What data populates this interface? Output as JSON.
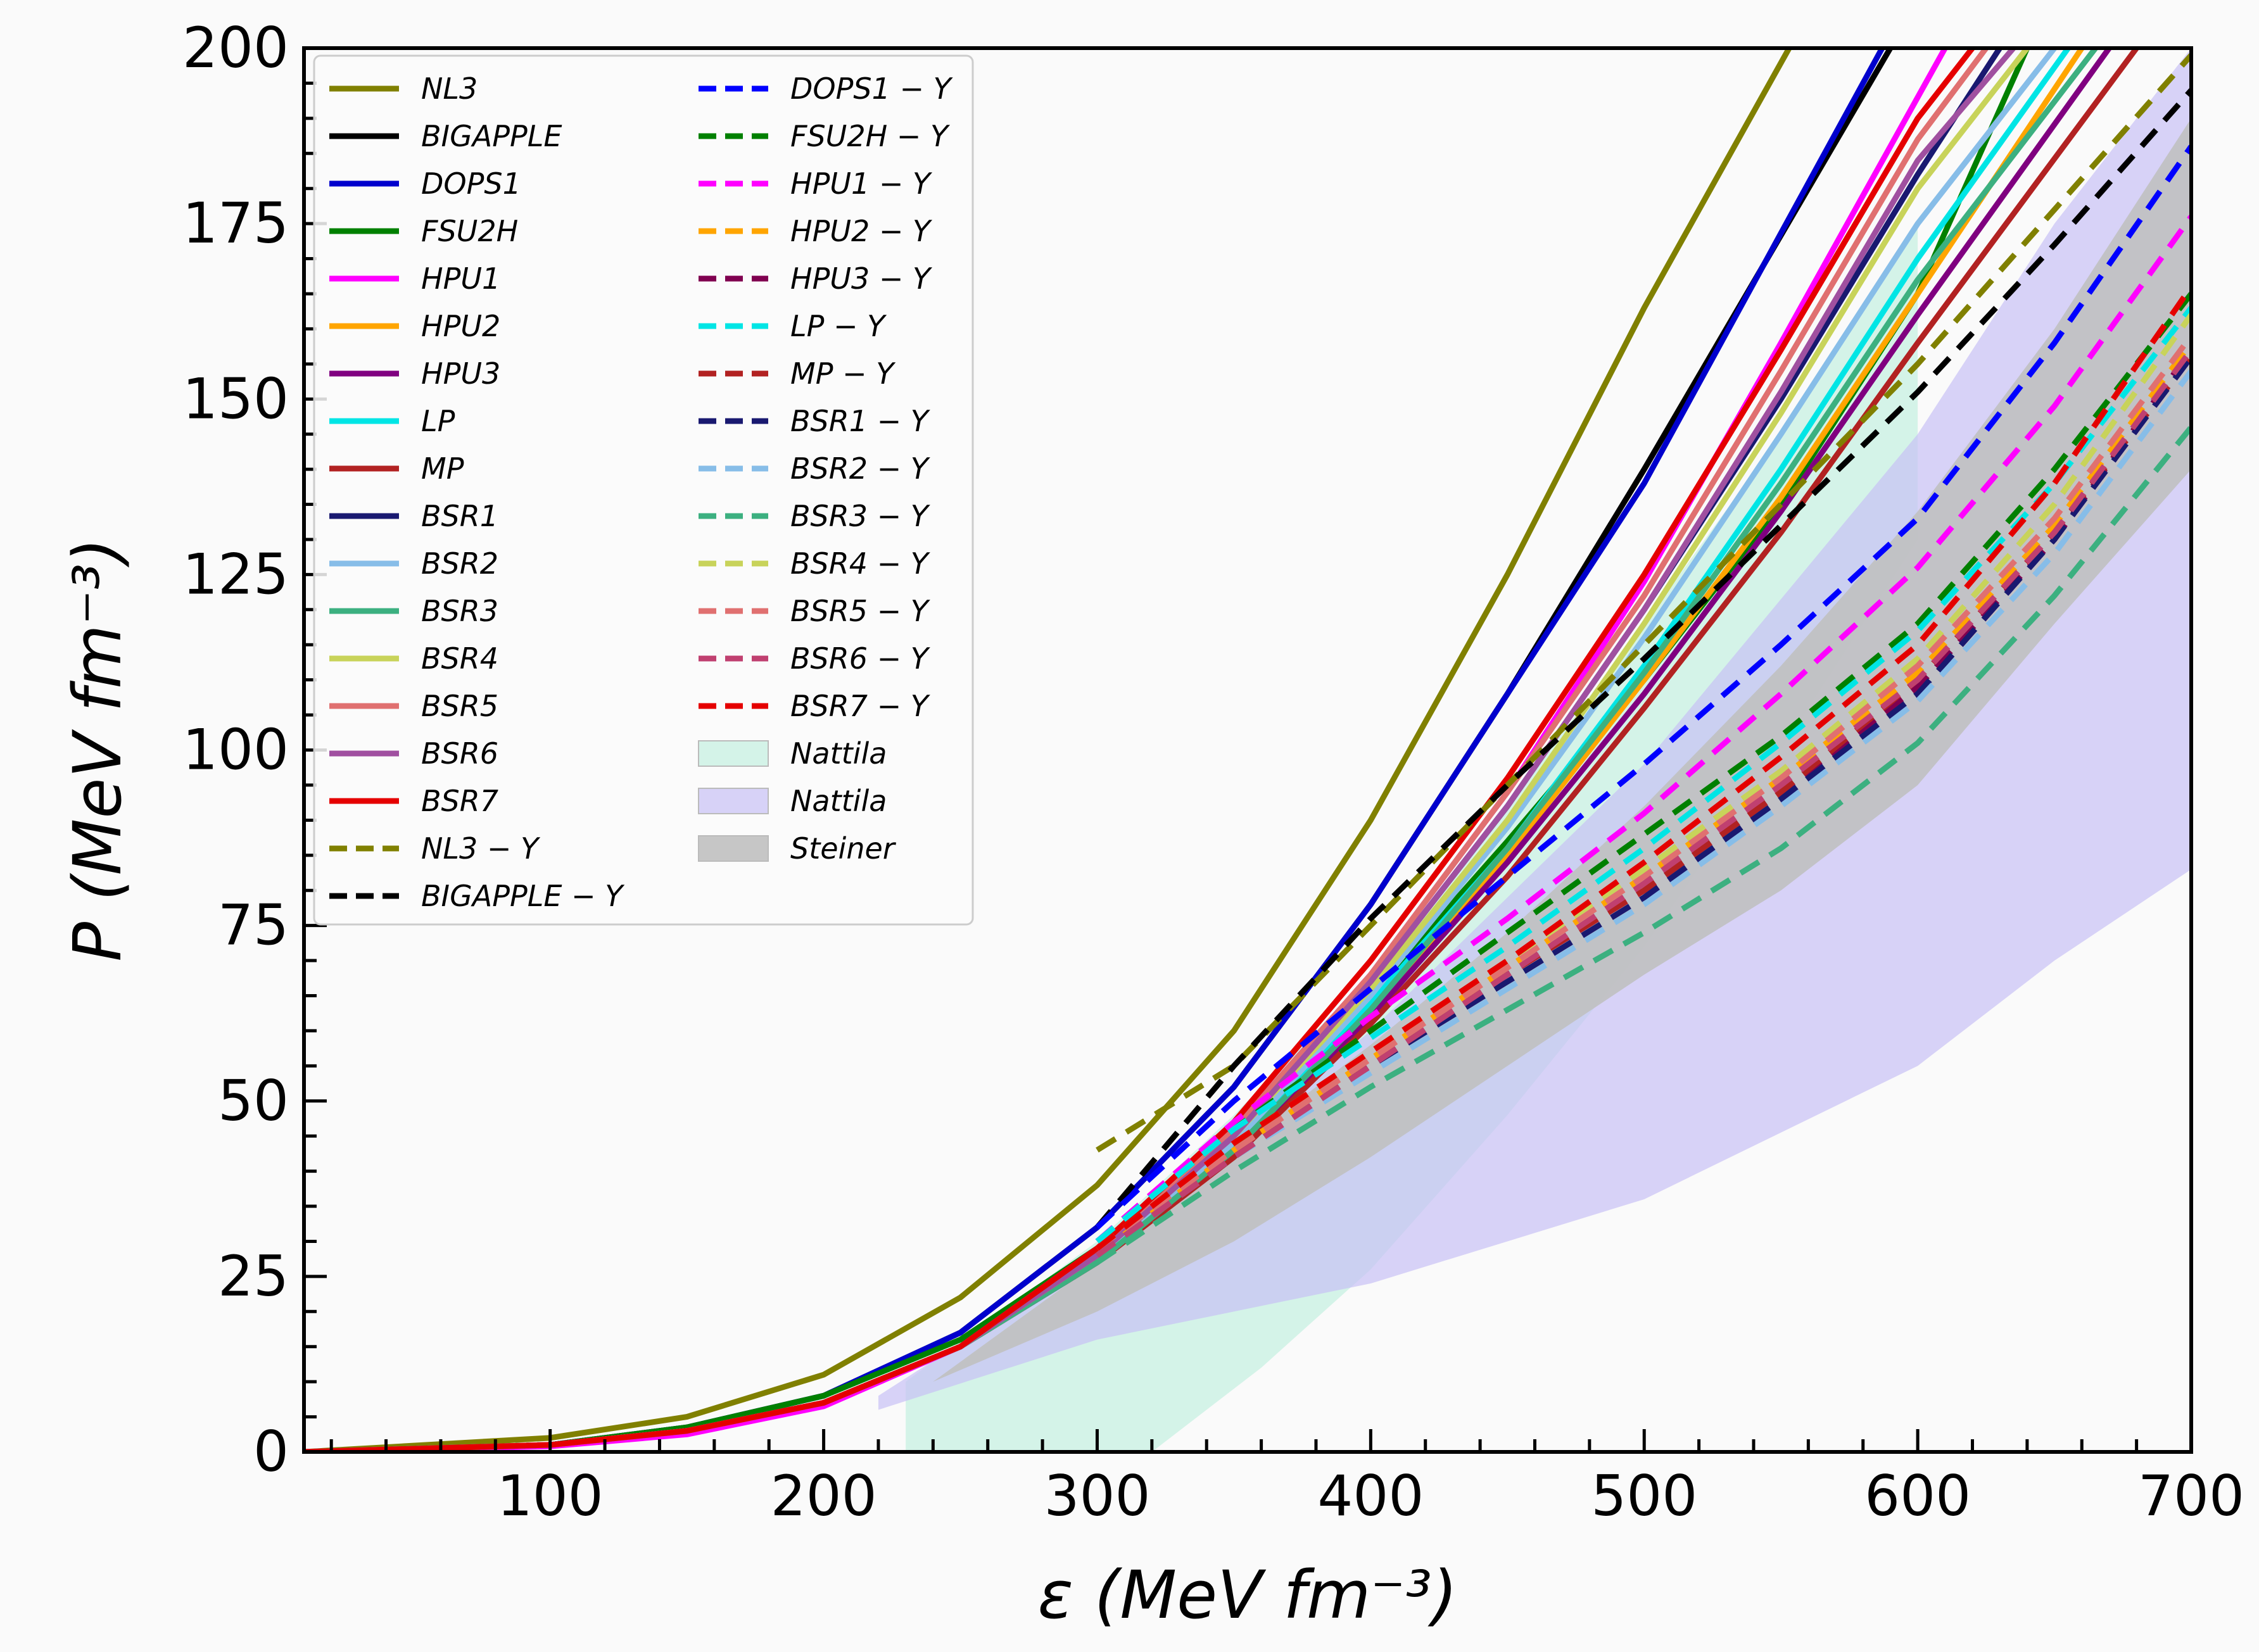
{
  "chart_data": {
    "type": "line",
    "xlabel": "ε (MeV fm⁻³)",
    "ylabel": "P (MeV fm⁻³)",
    "xlim": [
      10,
      700
    ],
    "ylim": [
      0,
      200
    ],
    "x_ticks": [
      100,
      200,
      300,
      400,
      500,
      600,
      700
    ],
    "y_ticks": [
      0,
      25,
      50,
      75,
      100,
      125,
      150,
      175,
      200
    ],
    "legend_position": "top-left",
    "grid": false,
    "series": [
      {
        "name": "NL3",
        "style": "solid",
        "color": "#808000",
        "x": [
          10,
          100,
          150,
          200,
          250,
          300,
          350,
          400,
          450,
          500,
          553
        ],
        "y": [
          0,
          2,
          5,
          11,
          22,
          38,
          60,
          90,
          125,
          163,
          200
        ]
      },
      {
        "name": "BIGAPPLE",
        "style": "solid",
        "color": "#000000",
        "x": [
          10,
          100,
          150,
          200,
          250,
          300,
          350,
          400,
          450,
          500,
          590
        ],
        "y": [
          0,
          1,
          3.5,
          8,
          17,
          32,
          52,
          78,
          108,
          140,
          200
        ]
      },
      {
        "name": "DOPS1",
        "style": "solid",
        "color": "#0000cd",
        "x": [
          10,
          100,
          150,
          200,
          250,
          300,
          350,
          400,
          450,
          500,
          587
        ],
        "y": [
          0,
          1,
          3.5,
          8,
          17,
          32,
          52,
          78,
          108,
          138,
          200
        ]
      },
      {
        "name": "FSU2H",
        "style": "solid",
        "color": "#008000",
        "x": [
          10,
          100,
          150,
          200,
          250,
          300,
          350,
          400,
          450,
          500,
          550,
          600,
          640
        ],
        "y": [
          0,
          1,
          3.5,
          8,
          16,
          29,
          45,
          65,
          87,
          110,
          135,
          165,
          200
        ]
      },
      {
        "name": "HPU1",
        "style": "solid",
        "color": "#ff00ff",
        "x": [
          10,
          100,
          150,
          200,
          250,
          300,
          350,
          400,
          450,
          500,
          550,
          610
        ],
        "y": [
          0,
          0.8,
          2.5,
          6.5,
          15,
          29,
          46,
          68,
          94,
          124,
          158,
          200
        ]
      },
      {
        "name": "HPU2",
        "style": "solid",
        "color": "#ffa500",
        "x": [
          10,
          100,
          150,
          200,
          250,
          300,
          350,
          400,
          450,
          500,
          550,
          600,
          660
        ],
        "y": [
          0,
          1,
          3,
          7,
          15,
          28,
          44,
          63,
          85,
          110,
          136,
          165,
          200
        ]
      },
      {
        "name": "HPU3",
        "style": "solid",
        "color": "#800080",
        "x": [
          10,
          100,
          150,
          200,
          250,
          300,
          350,
          400,
          450,
          500,
          550,
          600,
          670
        ],
        "y": [
          0,
          1,
          3,
          7,
          15,
          27,
          43,
          62,
          84,
          108,
          134,
          162,
          200
        ]
      },
      {
        "name": "LP",
        "style": "solid",
        "color": "#00e5e5",
        "x": [
          10,
          100,
          150,
          200,
          250,
          300,
          350,
          400,
          450,
          500,
          550,
          600,
          655
        ],
        "y": [
          0,
          1,
          3,
          7,
          15,
          28,
          44,
          64,
          86,
          112,
          140,
          170,
          200
        ]
      },
      {
        "name": "MP",
        "style": "solid",
        "color": "#b22222",
        "x": [
          10,
          100,
          150,
          200,
          250,
          300,
          350,
          400,
          450,
          500,
          550,
          600,
          680
        ],
        "y": [
          0,
          1,
          3,
          7,
          15,
          27,
          42,
          61,
          82,
          106,
          131,
          158,
          200
        ]
      },
      {
        "name": "BSR1",
        "style": "solid",
        "color": "#191970",
        "x": [
          10,
          100,
          150,
          200,
          250,
          300,
          350,
          400,
          450,
          500,
          550,
          600,
          630
        ],
        "y": [
          0,
          1,
          3,
          7,
          15,
          28,
          45,
          67,
          92,
          120,
          150,
          182,
          200
        ]
      },
      {
        "name": "BSR2",
        "style": "solid",
        "color": "#87bde8",
        "x": [
          10,
          100,
          150,
          200,
          250,
          300,
          350,
          400,
          450,
          500,
          550,
          600,
          650
        ],
        "y": [
          0,
          1,
          3,
          7,
          15,
          28,
          44,
          65,
          89,
          116,
          145,
          175,
          200
        ]
      },
      {
        "name": "BSR3",
        "style": "solid",
        "color": "#3cb080",
        "x": [
          10,
          100,
          150,
          200,
          250,
          300,
          350,
          400,
          450,
          500,
          550,
          600,
          665
        ],
        "y": [
          0,
          1,
          3,
          7,
          15,
          27,
          43,
          63,
          86,
          111,
          138,
          167,
          200
        ]
      },
      {
        "name": "BSR4",
        "style": "solid",
        "color": "#c8d35a",
        "x": [
          10,
          100,
          150,
          200,
          250,
          300,
          350,
          400,
          450,
          500,
          550,
          600,
          640
        ],
        "y": [
          0,
          1,
          3,
          7,
          15,
          28,
          45,
          66,
          90,
          118,
          148,
          180,
          200
        ]
      },
      {
        "name": "BSR5",
        "style": "solid",
        "color": "#e07070",
        "x": [
          10,
          100,
          150,
          200,
          250,
          300,
          350,
          400,
          450,
          500,
          550,
          600,
          625
        ],
        "y": [
          0,
          1,
          3,
          7,
          15,
          28,
          46,
          68,
          94,
          122,
          154,
          187,
          200
        ]
      },
      {
        "name": "BSR6",
        "style": "solid",
        "color": "#a050a0",
        "x": [
          10,
          100,
          150,
          200,
          250,
          300,
          350,
          400,
          450,
          500,
          550,
          600,
          635
        ],
        "y": [
          0,
          1,
          3,
          7,
          15,
          28,
          45,
          67,
          92,
          120,
          151,
          184,
          200
        ]
      },
      {
        "name": "BSR7",
        "style": "solid",
        "color": "#e50000",
        "x": [
          10,
          100,
          150,
          200,
          250,
          300,
          350,
          400,
          450,
          500,
          550,
          600,
          620
        ],
        "y": [
          0,
          1,
          3,
          7,
          15,
          29,
          47,
          70,
          96,
          125,
          157,
          190,
          200
        ]
      },
      {
        "name": "NL3 − Y",
        "style": "dashed",
        "color": "#808000",
        "x": [
          300,
          350,
          400,
          450,
          500,
          550,
          600,
          650,
          700
        ],
        "y": [
          43,
          55,
          75,
          95,
          115,
          135,
          155,
          177,
          199
        ]
      },
      {
        "name": "BIGAPPLE − Y",
        "style": "dashed",
        "color": "#000000",
        "x": [
          300,
          350,
          400,
          450,
          500,
          550,
          600,
          650,
          700
        ],
        "y": [
          32,
          55,
          76,
          95,
          113,
          132,
          151,
          172,
          194
        ]
      },
      {
        "name": "DOPS1 − Y",
        "style": "dashed",
        "color": "#0000ff",
        "x": [
          300,
          350,
          400,
          450,
          500,
          550,
          600,
          650,
          700
        ],
        "y": [
          32,
          50,
          66,
          82,
          98,
          115,
          133,
          158,
          186
        ]
      },
      {
        "name": "FSU2H − Y",
        "style": "dashed",
        "color": "#008000",
        "x": [
          300,
          350,
          400,
          450,
          500,
          550,
          600,
          650,
          700
        ],
        "y": [
          30,
          46,
          60,
          74,
          88,
          102,
          118,
          140,
          165
        ]
      },
      {
        "name": "HPU1 − Y",
        "style": "dashed",
        "color": "#ff00ff",
        "x": [
          300,
          350,
          400,
          450,
          500,
          550,
          600,
          650,
          700
        ],
        "y": [
          30,
          47,
          62,
          76,
          91,
          108,
          126,
          149,
          176
        ]
      },
      {
        "name": "HPU2 − Y",
        "style": "dashed",
        "color": "#ffa500",
        "x": [
          300,
          350,
          400,
          450,
          500,
          550,
          600,
          650,
          700
        ],
        "y": [
          28,
          43,
          56,
          69,
          82,
          96,
          111,
          132,
          158
        ]
      },
      {
        "name": "HPU3 − Y",
        "style": "dashed",
        "color": "#800050",
        "x": [
          300,
          350,
          400,
          450,
          500,
          550,
          600,
          650,
          700
        ],
        "y": [
          28,
          42,
          55,
          68,
          80,
          94,
          109,
          130,
          157
        ]
      },
      {
        "name": "LP − Y",
        "style": "dashed",
        "color": "#00e5e5",
        "x": [
          300,
          350,
          400,
          450,
          500,
          550,
          600,
          650,
          700
        ],
        "y": [
          30,
          46,
          59,
          72,
          86,
          101,
          117,
          138,
          163
        ]
      },
      {
        "name": "MP − Y",
        "style": "dashed",
        "color": "#b22222",
        "x": [
          300,
          350,
          400,
          450,
          500,
          550,
          600,
          650,
          700
        ],
        "y": [
          28,
          42,
          55,
          68,
          80,
          94,
          110,
          131,
          156
        ]
      },
      {
        "name": "BSR1 − Y",
        "style": "dashed",
        "color": "#191970",
        "x": [
          300,
          350,
          400,
          450,
          500,
          550,
          600,
          650,
          700
        ],
        "y": [
          28,
          42,
          55,
          67,
          79,
          93,
          108,
          130,
          156
        ]
      },
      {
        "name": "BSR2 − Y",
        "style": "dashed",
        "color": "#87bde8",
        "x": [
          300,
          350,
          400,
          450,
          500,
          550,
          600,
          650,
          700
        ],
        "y": [
          28,
          42,
          54,
          66,
          78,
          92,
          107,
          128,
          154
        ]
      },
      {
        "name": "BSR3 − Y",
        "style": "dashed",
        "color": "#3cb080",
        "x": [
          300,
          350,
          400,
          450,
          500,
          550,
          600,
          650,
          700
        ],
        "y": [
          27,
          40,
          52,
          63,
          74,
          86,
          101,
          122,
          146
        ]
      },
      {
        "name": "BSR4 − Y",
        "style": "dashed",
        "color": "#c8d35a",
        "x": [
          300,
          350,
          400,
          450,
          500,
          550,
          600,
          650,
          700
        ],
        "y": [
          29,
          44,
          57,
          70,
          83,
          97,
          113,
          135,
          162
        ]
      },
      {
        "name": "BSR5 − Y",
        "style": "dashed",
        "color": "#e07070",
        "x": [
          300,
          350,
          400,
          450,
          500,
          550,
          600,
          650,
          700
        ],
        "y": [
          29,
          43,
          56,
          69,
          82,
          96,
          112,
          133,
          159
        ]
      },
      {
        "name": "BSR6 − Y",
        "style": "dashed",
        "color": "#c04070",
        "x": [
          300,
          350,
          400,
          450,
          500,
          550,
          600,
          650,
          700
        ],
        "y": [
          28,
          42,
          55,
          68,
          81,
          95,
          110,
          131,
          157
        ]
      },
      {
        "name": "BSR7 − Y",
        "style": "dashed",
        "color": "#e50000",
        "x": [
          300,
          350,
          400,
          450,
          500,
          550,
          600,
          650,
          700
        ],
        "y": [
          29,
          44,
          57,
          70,
          84,
          99,
          115,
          138,
          166
        ]
      }
    ],
    "bands": [
      {
        "name": "Nattila",
        "fill": "#b4ecd8",
        "opacity": 0.55,
        "upper": {
          "x": [
            230,
            300,
            350,
            400,
            450,
            500,
            550,
            600
          ],
          "y": [
            10,
            30,
            48,
            68,
            92,
            118,
            145,
            175
          ]
        },
        "lower": {
          "x": [
            230,
            320,
            360,
            400,
            450,
            500,
            550,
            600
          ],
          "y": [
            0,
            0,
            12,
            26,
            48,
            72,
            100,
            130
          ]
        }
      },
      {
        "name": "Nattila",
        "fill": "#c8c0f5",
        "opacity": 0.7,
        "upper": {
          "x": [
            220,
            300,
            400,
            500,
            600,
            650,
            700
          ],
          "y": [
            8,
            28,
            60,
            98,
            145,
            175,
            200
          ]
        },
        "lower": {
          "x": [
            220,
            300,
            400,
            500,
            600,
            650,
            700
          ],
          "y": [
            6,
            16,
            24,
            36,
            55,
            70,
            83
          ]
        }
      },
      {
        "name": "Steiner",
        "fill": "#c0c0c0",
        "opacity": 0.9,
        "upper": {
          "x": [
            240,
            300,
            350,
            400,
            450,
            500,
            550,
            600,
            650,
            700
          ],
          "y": [
            10,
            27,
            43,
            58,
            74,
            92,
            112,
            134,
            160,
            190
          ]
        },
        "lower": {
          "x": [
            300,
            350,
            400,
            450,
            500,
            550,
            600,
            650,
            700
          ],
          "y": [
            20,
            30,
            42,
            55,
            68,
            80,
            95,
            118,
            140
          ]
        }
      }
    ]
  }
}
